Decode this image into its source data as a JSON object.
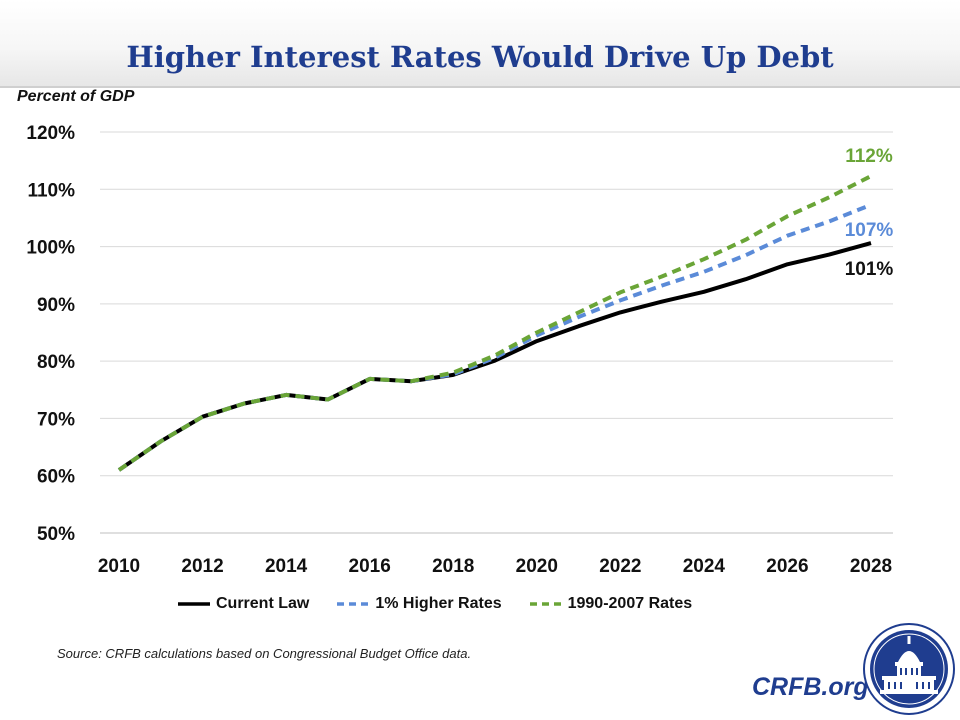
{
  "title": "Higher Interest Rates Would Drive Up Debt",
  "y_axis_label": "Percent of GDP",
  "source_note": "Source: CRFB calculations based on Congressional Budget Office data.",
  "brand": "CRFB.org",
  "seal_icon": "capitol-dome-seal-icon",
  "colors": {
    "title": "#1f3d8f",
    "current_law": "#000000",
    "higher_rates": "#5b8bd8",
    "historical_rates": "#6aa537",
    "grid": "#d9d9d9"
  },
  "chart_data": {
    "type": "line",
    "title": "Higher Interest Rates Would Drive Up Debt",
    "xlabel": "",
    "ylabel": "Percent of GDP",
    "ylim": [
      50,
      120
    ],
    "xlim": [
      2010,
      2028
    ],
    "grid": true,
    "legend_position": "bottom",
    "x_ticks": [
      "2010",
      "2012",
      "2014",
      "2016",
      "2018",
      "2020",
      "2022",
      "2024",
      "2026",
      "2028"
    ],
    "y_ticks": [
      "50%",
      "60%",
      "70%",
      "80%",
      "90%",
      "100%",
      "110%",
      "120%"
    ],
    "x": [
      2010,
      2011,
      2012,
      2013,
      2014,
      2015,
      2016,
      2017,
      2018,
      2019,
      2020,
      2021,
      2022,
      2023,
      2024,
      2025,
      2026,
      2027,
      2028
    ],
    "series": [
      {
        "name": "Current Law",
        "style": "solid",
        "color": "#000000",
        "values": [
          61,
          66,
          70.3,
          72.6,
          74.1,
          73.3,
          76.9,
          76.5,
          77.6,
          80.1,
          83.5,
          86.1,
          88.5,
          90.4,
          92.1,
          94.3,
          96.9,
          98.6,
          100.6
        ],
        "end_label": "101%"
      },
      {
        "name": "1% Higher Rates",
        "style": "dashed",
        "color": "#5b8bd8",
        "values": [
          61,
          66,
          70.3,
          72.6,
          74.1,
          73.3,
          76.9,
          76.5,
          77.7,
          80.6,
          84.5,
          87.7,
          90.6,
          93.2,
          95.6,
          98.5,
          101.9,
          104.4,
          107.3
        ],
        "end_label": "107%"
      },
      {
        "name": "1990-2007 Rates",
        "style": "dashed",
        "color": "#6aa537",
        "values": [
          61,
          66,
          70.3,
          72.6,
          74.1,
          73.3,
          76.9,
          76.5,
          78,
          81,
          85,
          88.5,
          92,
          94.8,
          97.8,
          101.2,
          105.3,
          108.6,
          112.3
        ],
        "end_label": "112%"
      }
    ]
  }
}
